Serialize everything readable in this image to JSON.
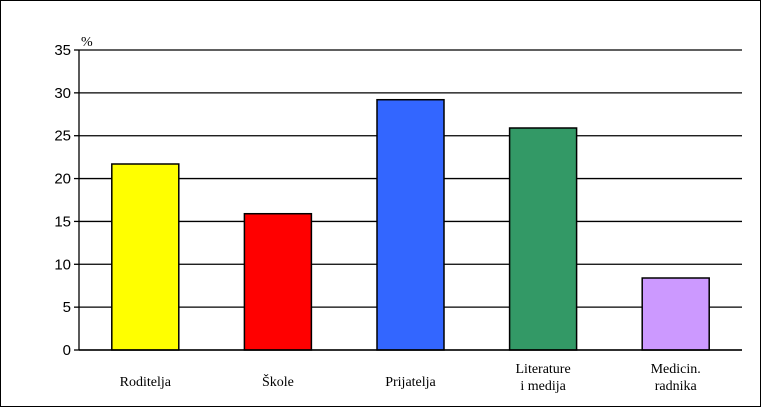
{
  "chart_data": {
    "type": "bar",
    "title": "",
    "xlabel": "",
    "ylabel": "%",
    "ylim": [
      0,
      35
    ],
    "yticks": [
      0,
      5,
      10,
      15,
      20,
      25,
      30,
      35
    ],
    "grid": true,
    "categories": [
      [
        "Roditelja"
      ],
      [
        "Škole"
      ],
      [
        "Prijatelja"
      ],
      [
        "Literature",
        "i medija"
      ],
      [
        "Medicin.",
        "radnika"
      ]
    ],
    "values": [
      21.7,
      15.9,
      29.2,
      25.9,
      8.4
    ],
    "colors": [
      "#ffff00",
      "#ff0000",
      "#3366ff",
      "#339966",
      "#cc99ff"
    ]
  }
}
